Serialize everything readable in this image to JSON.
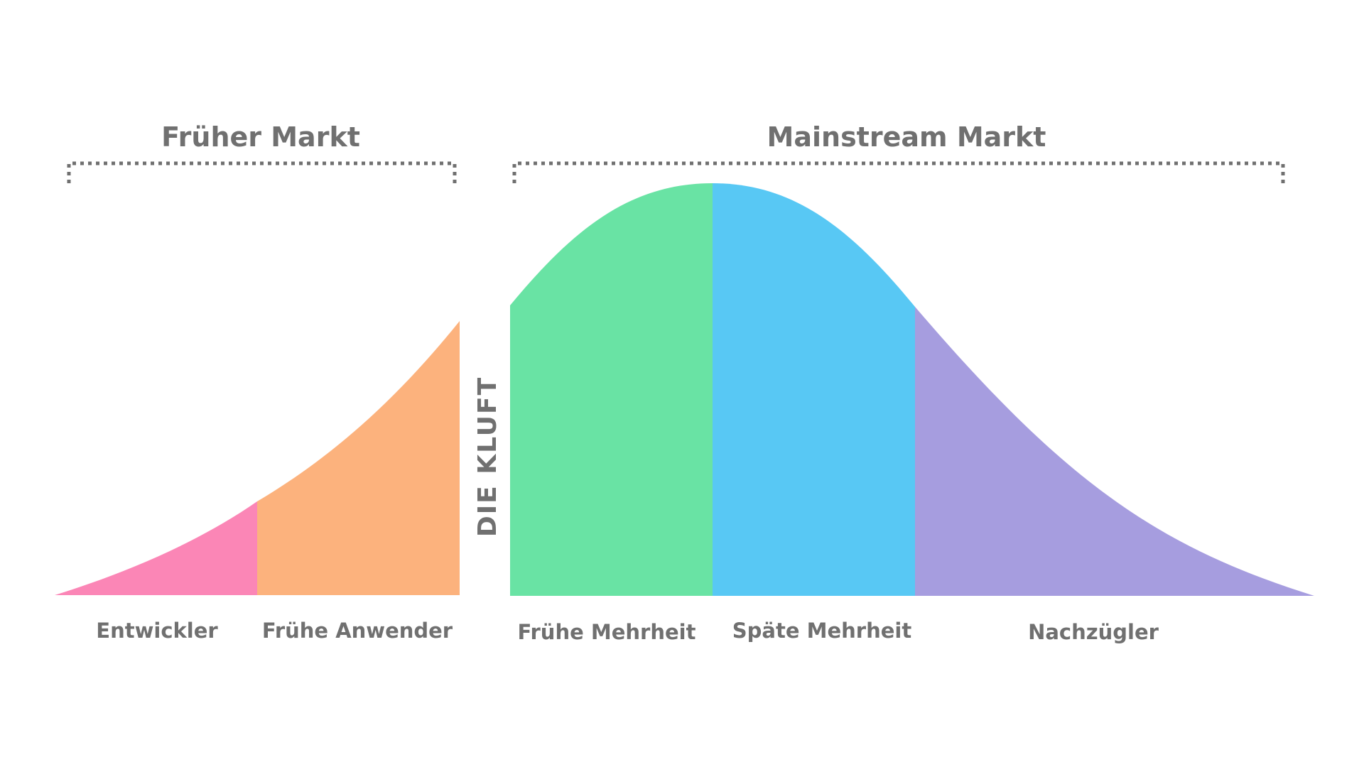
{
  "markets": {
    "early": {
      "label": "Früher Markt"
    },
    "mainstream": {
      "label": "Mainstream Markt"
    }
  },
  "chasm": {
    "label": "DIE KLUFT"
  },
  "segments": [
    {
      "key": "innovators",
      "label": "Entwickler",
      "color": "#fb86b6"
    },
    {
      "key": "early_adopters",
      "label": "Frühe Anwender",
      "color": "#fcb27d"
    },
    {
      "key": "early_majority",
      "label": "Frühe Mehrheit",
      "color": "#69e3a4"
    },
    {
      "key": "late_majority",
      "label": "Späte Mehrheit",
      "color": "#58c8f4"
    },
    {
      "key": "laggards",
      "label": "Nachzügler",
      "color": "#a69ddf"
    }
  ],
  "colors": {
    "text": "#707070",
    "background": "#ffffff"
  }
}
